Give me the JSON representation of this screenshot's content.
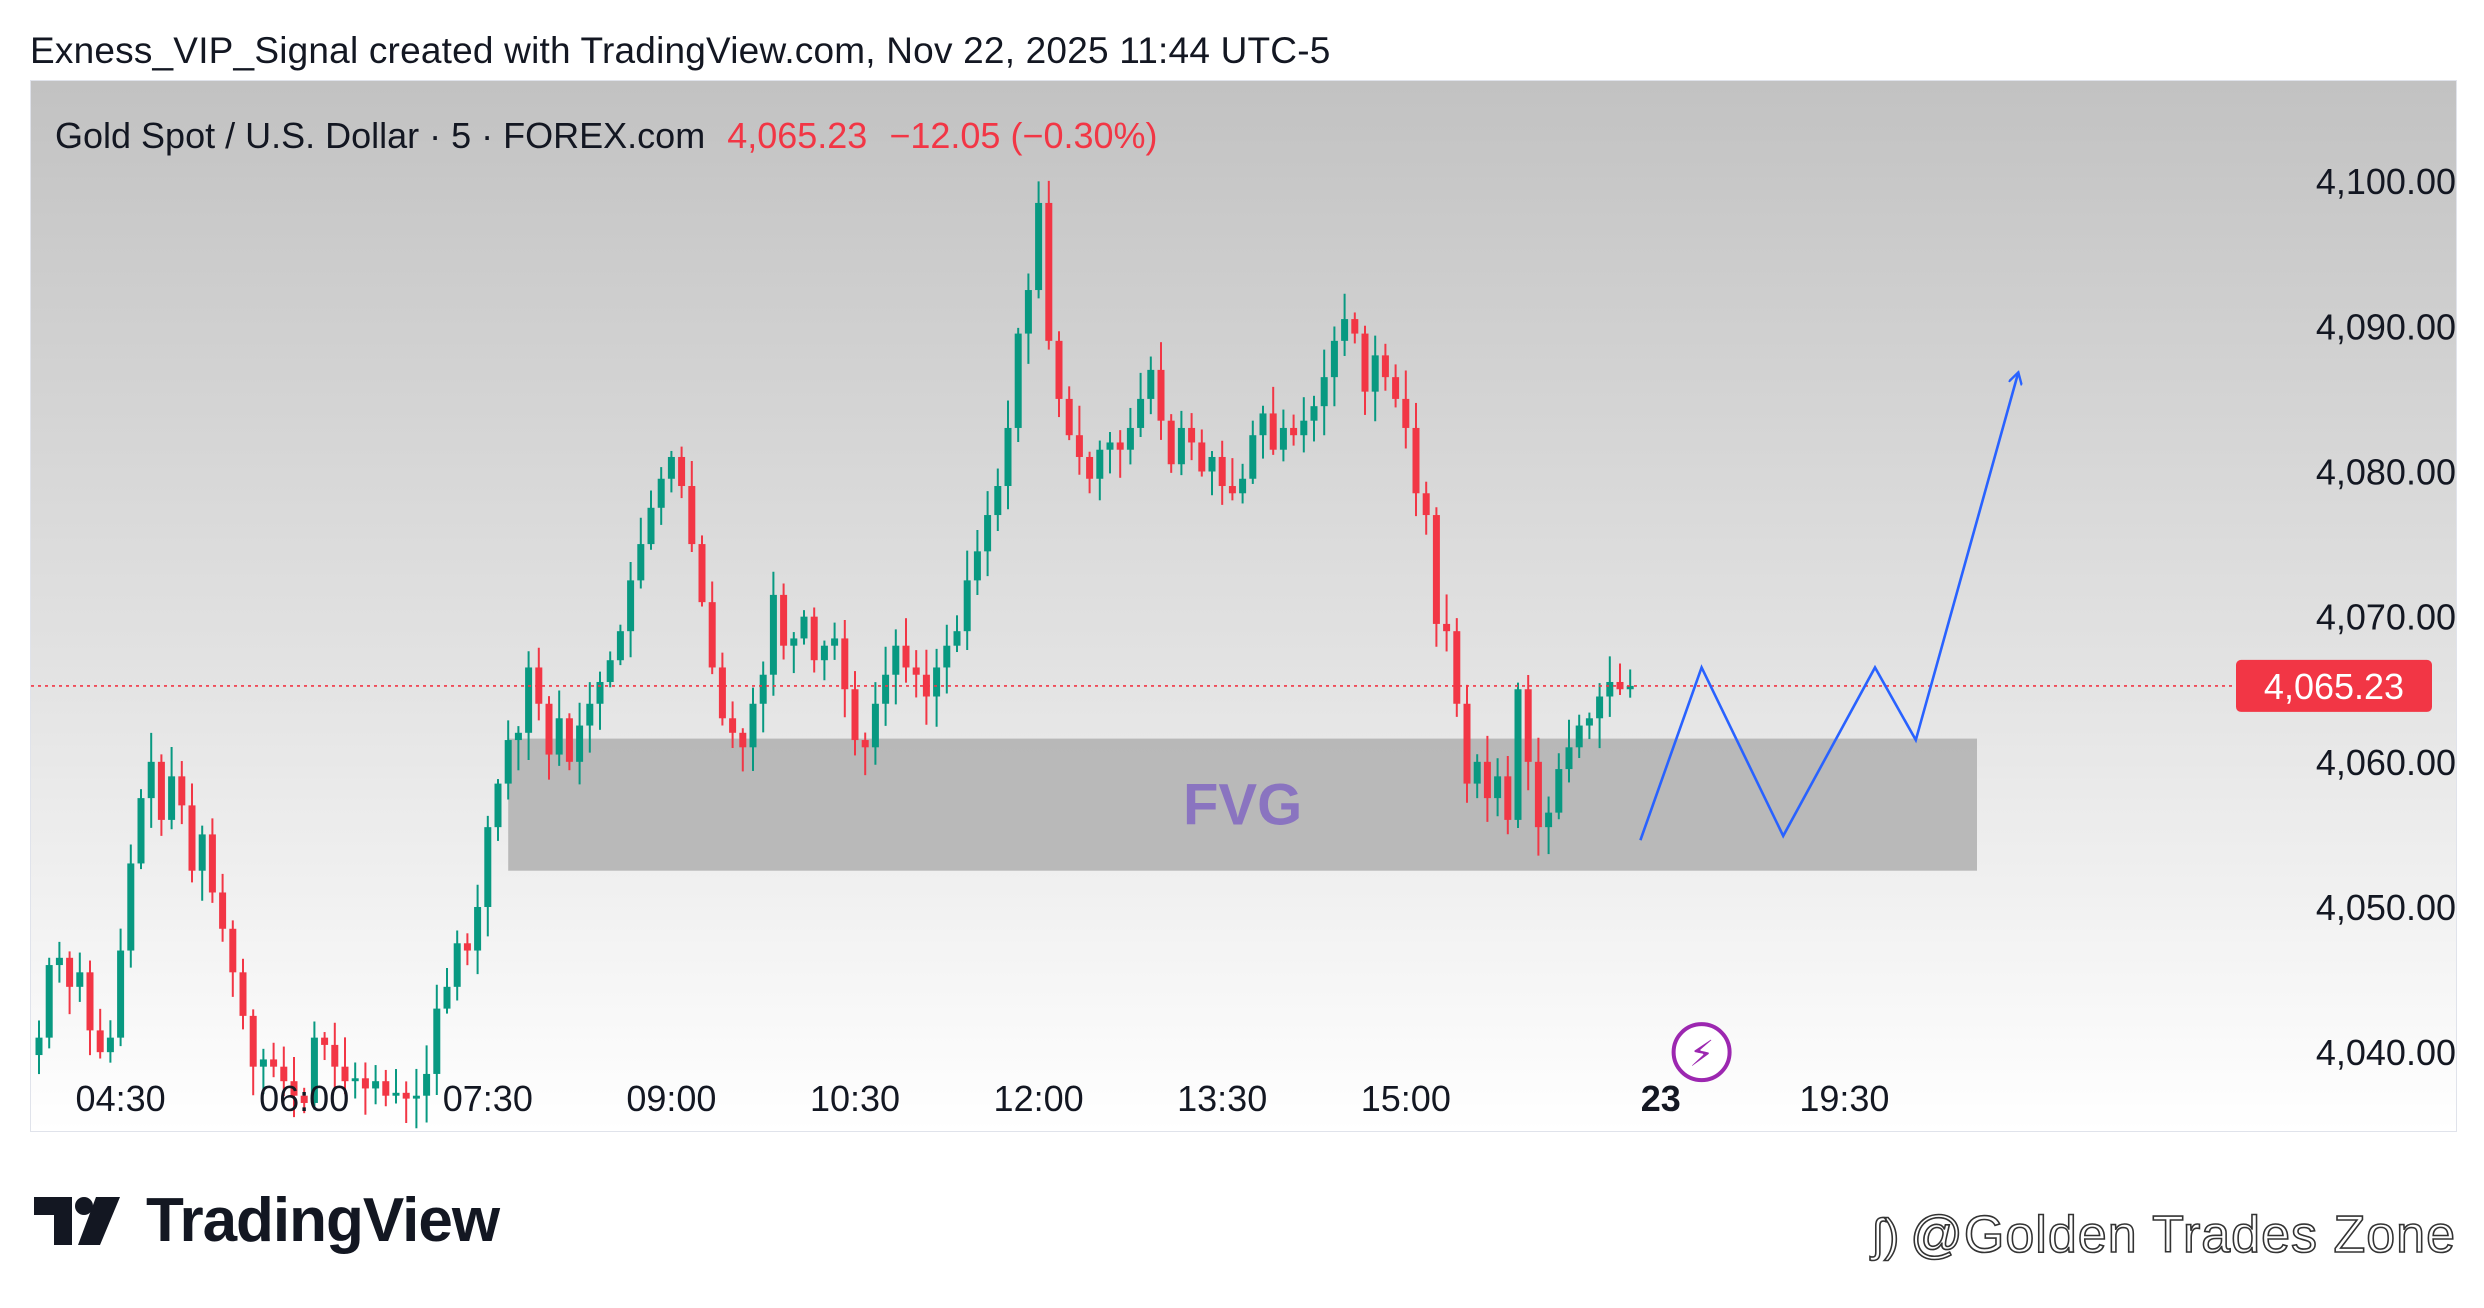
{
  "header": {
    "caption": "Exness_VIP_Signal created with TradingView.com, Nov 22, 2025 11:44 UTC-5"
  },
  "legend": {
    "symbol": "Gold Spot / U.S. Dollar · 5 · FOREX.com",
    "last": "4,065.23",
    "change": "−12.05 (−0.30%)"
  },
  "branding": {
    "logo_text": "TradingView",
    "watermark": "@Golden Trades Zone"
  },
  "colors": {
    "up": "#089981",
    "down": "#f23645",
    "projection": "#2962ff",
    "zone": "#b2b2b2",
    "zone_label": "#8a74c0",
    "price_tag": "#f23645"
  },
  "chart_data": {
    "type": "candlestick",
    "symbol": "Gold Spot / U.S. Dollar",
    "interval": "5",
    "y_axis": {
      "position": "right",
      "ticks": [
        4100,
        4090,
        4080,
        4070,
        4060,
        4050,
        4040
      ],
      "tick_labels": [
        "4,100.00",
        "4,090.00",
        "4,080.00",
        "4,070.00",
        "4,060.00",
        "4,050.00",
        "4,040.00"
      ],
      "range": [
        4037.6,
        4106.9
      ]
    },
    "x_axis": {
      "ticks": [
        {
          "label": "04:30",
          "bar": 8,
          "bold": false
        },
        {
          "label": "06:00",
          "bar": 26,
          "bold": false
        },
        {
          "label": "07:30",
          "bar": 44,
          "bold": false
        },
        {
          "label": "09:00",
          "bar": 62,
          "bold": false
        },
        {
          "label": "10:30",
          "bar": 80,
          "bold": false
        },
        {
          "label": "12:00",
          "bar": 98,
          "bold": false
        },
        {
          "label": "13:30",
          "bar": 116,
          "bold": false
        },
        {
          "label": "15:00",
          "bar": 134,
          "bold": false
        },
        {
          "label": "23",
          "bar": 159,
          "bold": true
        },
        {
          "label": "19:30",
          "bar": 177,
          "bold": false
        }
      ],
      "bar_count": 197
    },
    "last_price": 4065.23,
    "last_price_label": "4,065.23",
    "candles_close": [
      4041.0,
      4046.0,
      4046.5,
      4044.5,
      4045.5,
      4041.5,
      4040.0,
      4041.0,
      4047.0,
      4053.0,
      4057.5,
      4060.0,
      4056.0,
      4059.0,
      4057.0,
      4052.5,
      4055.0,
      4051.0,
      4048.5,
      4045.5,
      4042.5,
      4039.0,
      4039.5,
      4039.0,
      4038.0,
      4037.0,
      4036.5,
      4041.0,
      4040.5,
      4039.0,
      4038.0,
      4038.2,
      4037.5,
      4038.0,
      4037.0,
      4037.2,
      4036.8,
      4037.0,
      4038.5,
      4043.0,
      4044.5,
      4047.5,
      4047.0,
      4050.0,
      4055.5,
      4058.5,
      4061.5,
      4062.0,
      4066.5,
      4064.0,
      4060.5,
      4063.0,
      4060.0,
      4062.5,
      4064.0,
      4065.5,
      4067.0,
      4069.0,
      4072.5,
      4075.0,
      4077.5,
      4079.5,
      4081.0,
      4079.0,
      4075.0,
      4071.0,
      4066.5,
      4063.0,
      4062.0,
      4061.0,
      4064.0,
      4066.0,
      4071.5,
      4068.0,
      4068.5,
      4070.0,
      4067.0,
      4068.0,
      4068.5,
      4065.0,
      4061.5,
      4061.0,
      4064.0,
      4066.0,
      4068.0,
      4066.5,
      4066.0,
      4064.5,
      4066.5,
      4068.0,
      4069.0,
      4072.5,
      4074.5,
      4077.0,
      4079.0,
      4083.0,
      4089.5,
      4092.5,
      4098.5,
      4089.0,
      4085.0,
      4082.5,
      4081.0,
      4079.5,
      4081.5,
      4082.0,
      4081.5,
      4083.0,
      4085.0,
      4087.0,
      4083.5,
      4080.5,
      4083.0,
      4082.0,
      4080.0,
      4081.0,
      4079.0,
      4078.5,
      4079.5,
      4082.5,
      4084.0,
      4081.5,
      4083.0,
      4082.5,
      4083.5,
      4084.5,
      4086.5,
      4089.0,
      4090.5,
      4089.5,
      4085.5,
      4088.0,
      4086.5,
      4085.0,
      4083.0,
      4078.5,
      4077.0,
      4069.5,
      4069.0,
      4064.0,
      4058.5,
      4060.0,
      4057.5,
      4059.0,
      4056.0,
      4065.0,
      4060.0,
      4055.5,
      4056.5,
      4059.5,
      4061.0,
      4062.5,
      4063.0,
      4064.5,
      4065.5,
      4065.0,
      4065.23
    ],
    "zone": {
      "label": "FVG",
      "from_bar": 46,
      "to_bar": 190,
      "price_top": 4061.6,
      "price_bottom": 4052.5
    },
    "projection_path": [
      {
        "bar": 157,
        "price": 4054.6
      },
      {
        "bar": 163,
        "price": 4066.5
      },
      {
        "bar": 171,
        "price": 4054.9
      },
      {
        "bar": 180,
        "price": 4066.5
      },
      {
        "bar": 184,
        "price": 4061.5
      },
      {
        "bar": 194,
        "price": 4086.7
      }
    ],
    "event_marker": {
      "bar": 163,
      "price": 4040.0,
      "glyph": "⚡"
    }
  }
}
